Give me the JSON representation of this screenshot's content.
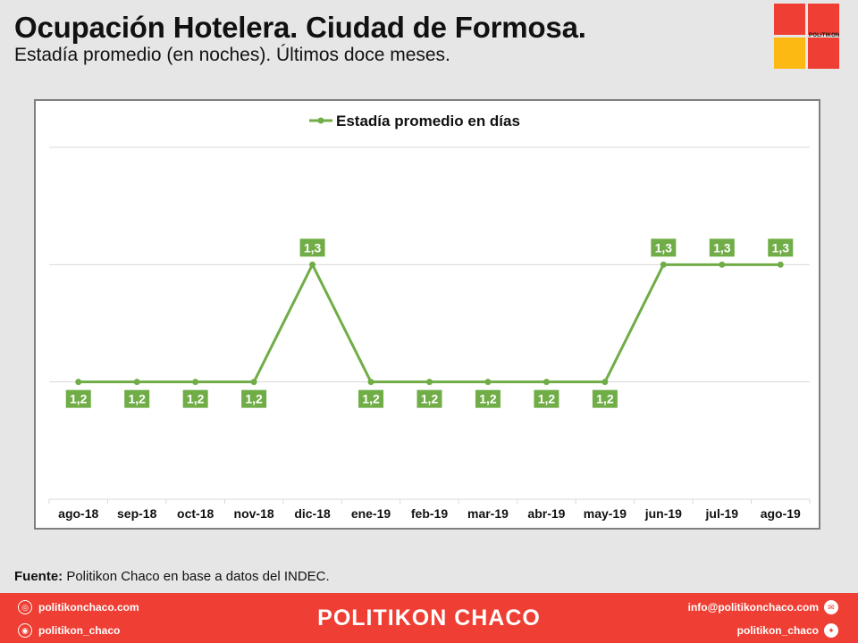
{
  "header": {
    "title": "Ocupación Hotelera. Ciudad de Formosa.",
    "subtitle": "Estadía promedio (en noches). Últimos doce meses."
  },
  "logo": {
    "text": "POLITIKON",
    "icon": "politikon-logo-icon"
  },
  "chart_data": {
    "type": "line",
    "title": "",
    "xlabel": "",
    "ylabel": "",
    "categories": [
      "ago-18",
      "sep-18",
      "oct-18",
      "nov-18",
      "dic-18",
      "ene-19",
      "feb-19",
      "mar-19",
      "abr-19",
      "may-19",
      "jun-19",
      "jul-19",
      "ago-19"
    ],
    "series": [
      {
        "name": "Estadía promedio en días",
        "values": [
          1.2,
          1.2,
          1.2,
          1.2,
          1.3,
          1.2,
          1.2,
          1.2,
          1.2,
          1.2,
          1.3,
          1.3,
          1.3
        ],
        "labels": [
          "1,2",
          "1,2",
          "1,2",
          "1,2",
          "1,3",
          "1,2",
          "1,2",
          "1,2",
          "1,2",
          "1,2",
          "1,3",
          "1,3",
          "1,3"
        ],
        "color": "#70ad47"
      }
    ],
    "ylim": [
      1.1,
      1.4
    ],
    "gridlines": [
      1.2,
      1.3,
      1.4
    ],
    "grid": true,
    "legend": "top"
  },
  "source": {
    "label": "Fuente:",
    "text": " Politikon Chaco en base a datos del INDEC."
  },
  "footer": {
    "brand": "POLITIKON CHACO",
    "website": "politikonchaco.com",
    "instagram": "politikon_chaco",
    "email": "info@politikonchaco.com",
    "twitter": "politikon_chaco",
    "bg_color": "#ef3e33"
  }
}
